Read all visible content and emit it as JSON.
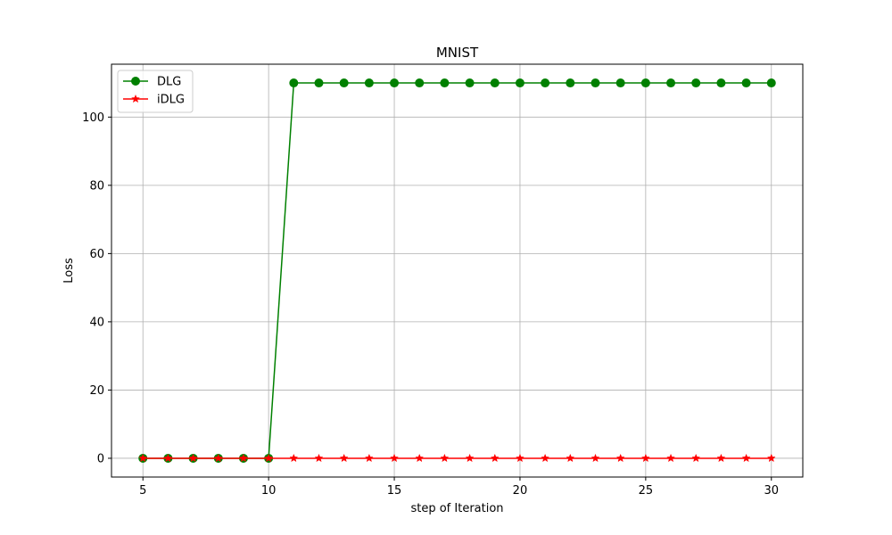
{
  "chart_data": {
    "type": "line",
    "title": "MNIST",
    "xlabel": "step of Iteration",
    "ylabel": "Loss",
    "xlim": [
      3.75,
      31.25
    ],
    "ylim": [
      -5.5,
      115.5
    ],
    "xticks": [
      5,
      10,
      15,
      20,
      25,
      30
    ],
    "yticks": [
      0,
      20,
      40,
      60,
      80,
      100
    ],
    "grid": true,
    "legend_position": "upper-left",
    "x": [
      5,
      6,
      7,
      8,
      9,
      10,
      11,
      12,
      13,
      14,
      15,
      16,
      17,
      18,
      19,
      20,
      21,
      22,
      23,
      24,
      25,
      26,
      27,
      28,
      29,
      30
    ],
    "series": [
      {
        "name": "DLG",
        "color": "#008000",
        "marker": "circle",
        "values": [
          0,
          0,
          0,
          0,
          0,
          0,
          110,
          110,
          110,
          110,
          110,
          110,
          110,
          110,
          110,
          110,
          110,
          110,
          110,
          110,
          110,
          110,
          110,
          110,
          110,
          110
        ]
      },
      {
        "name": "iDLG",
        "color": "#ff0000",
        "marker": "star",
        "values": [
          0,
          0,
          0,
          0,
          0,
          0,
          0,
          0,
          0,
          0,
          0,
          0,
          0,
          0,
          0,
          0,
          0,
          0,
          0,
          0,
          0,
          0,
          0,
          0,
          0,
          0
        ]
      }
    ]
  }
}
